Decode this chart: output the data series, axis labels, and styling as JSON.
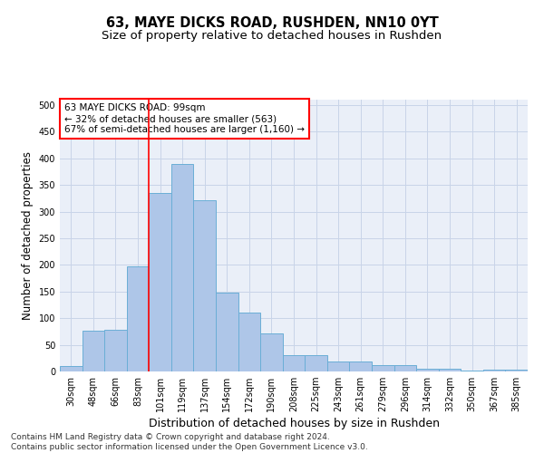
{
  "title_line1": "63, MAYE DICKS ROAD, RUSHDEN, NN10 0YT",
  "title_line2": "Size of property relative to detached houses in Rushden",
  "xlabel": "Distribution of detached houses by size in Rushden",
  "ylabel": "Number of detached properties",
  "categories": [
    "30sqm",
    "48sqm",
    "66sqm",
    "83sqm",
    "101sqm",
    "119sqm",
    "137sqm",
    "154sqm",
    "172sqm",
    "190sqm",
    "208sqm",
    "225sqm",
    "243sqm",
    "261sqm",
    "279sqm",
    "296sqm",
    "314sqm",
    "332sqm",
    "350sqm",
    "367sqm",
    "385sqm"
  ],
  "values": [
    10,
    77,
    78,
    198,
    335,
    390,
    322,
    148,
    110,
    72,
    30,
    30,
    18,
    18,
    12,
    12,
    5,
    5,
    2,
    3,
    3
  ],
  "bar_color": "#aec6e8",
  "bar_edge_color": "#6aaed6",
  "vline_x": 3.5,
  "vline_color": "red",
  "annotation_text": "63 MAYE DICKS ROAD: 99sqm\n← 32% of detached houses are smaller (563)\n67% of semi-detached houses are larger (1,160) →",
  "annotation_box_color": "white",
  "annotation_box_edge_color": "red",
  "ylim": [
    0,
    510
  ],
  "yticks": [
    0,
    50,
    100,
    150,
    200,
    250,
    300,
    350,
    400,
    450,
    500
  ],
  "grid_color": "#c8d4e8",
  "bg_color": "#eaeff8",
  "footer_line1": "Contains HM Land Registry data © Crown copyright and database right 2024.",
  "footer_line2": "Contains public sector information licensed under the Open Government Licence v3.0.",
  "title_fontsize": 10.5,
  "subtitle_fontsize": 9.5,
  "xlabel_fontsize": 9,
  "ylabel_fontsize": 8.5,
  "tick_fontsize": 7,
  "annot_fontsize": 7.5,
  "footer_fontsize": 6.5
}
